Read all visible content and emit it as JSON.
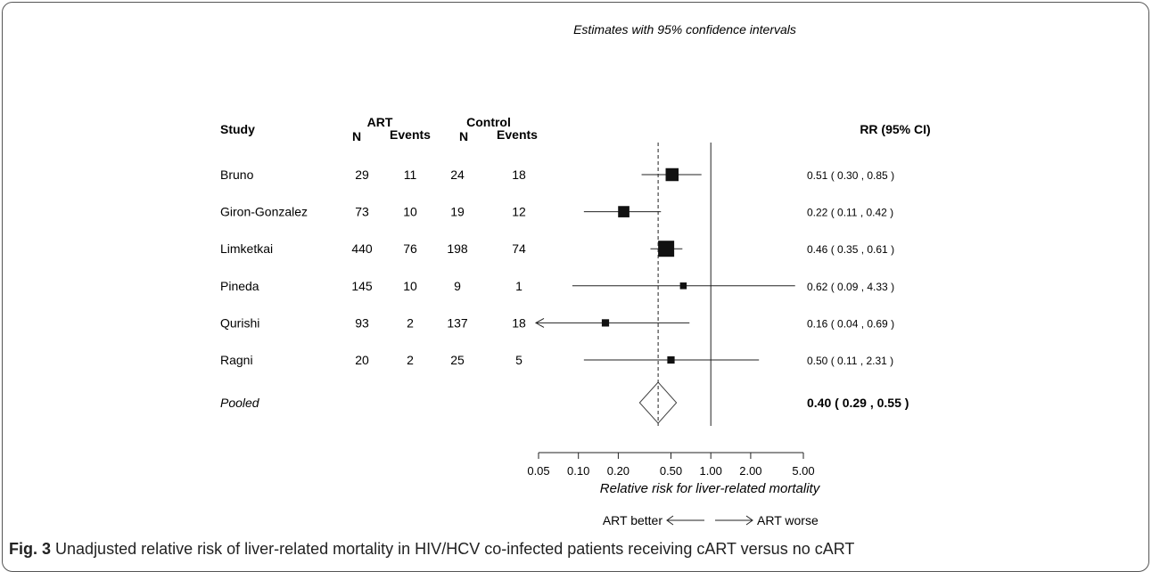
{
  "chart_data": {
    "type": "forest",
    "title": "Estimates with 95% confidence intervals",
    "headers": {
      "study": "Study",
      "art_group": "ART",
      "control_group": "Control",
      "n": "N",
      "events": "Events",
      "rr": "RR (95% CI)"
    },
    "studies": [
      {
        "name": "Bruno",
        "art_n": "29",
        "art_events": "11",
        "ctrl_n": "24",
        "ctrl_events": "18",
        "rr": 0.51,
        "lo": 0.3,
        "hi": 0.85,
        "rr_text": "0.51  ( 0.30 , 0.85 )",
        "weight": 0.75,
        "arrow_left": false
      },
      {
        "name": "Giron-Gonzalez",
        "art_n": "73",
        "art_events": "10",
        "ctrl_n": "19",
        "ctrl_events": "12",
        "rr": 0.22,
        "lo": 0.11,
        "hi": 0.42,
        "rr_text": "0.22  ( 0.11 , 0.42 )",
        "weight": 0.62,
        "arrow_left": false
      },
      {
        "name": "Limketkai",
        "art_n": "440",
        "art_events": "76",
        "ctrl_n": "198",
        "ctrl_events": "74",
        "rr": 0.46,
        "lo": 0.35,
        "hi": 0.61,
        "rr_text": "0.46  ( 0.35 , 0.61 )",
        "weight": 1.0,
        "arrow_left": false
      },
      {
        "name": "Pineda",
        "art_n": "145",
        "art_events": "10",
        "ctrl_n": "9",
        "ctrl_events": "1",
        "rr": 0.62,
        "lo": 0.09,
        "hi": 4.33,
        "rr_text": "0.62  ( 0.09 , 4.33 )",
        "weight": 0.25,
        "arrow_left": false
      },
      {
        "name": "Qurishi",
        "art_n": "93",
        "art_events": "2",
        "ctrl_n": "137",
        "ctrl_events": "18",
        "rr": 0.16,
        "lo": 0.04,
        "hi": 0.69,
        "rr_text": "0.16  ( 0.04 , 0.69 )",
        "weight": 0.3,
        "arrow_left": true
      },
      {
        "name": "Ragni",
        "art_n": "20",
        "art_events": "2",
        "ctrl_n": "25",
        "ctrl_events": "5",
        "rr": 0.5,
        "lo": 0.11,
        "hi": 2.31,
        "rr_text": "0.50  ( 0.11 , 2.31 )",
        "weight": 0.3,
        "arrow_left": false
      }
    ],
    "pooled": {
      "name": "Pooled",
      "rr": 0.4,
      "lo": 0.29,
      "hi": 0.55,
      "rr_text": "0.40   ( 0.29 , 0.55 )"
    },
    "x_scale": "log",
    "xlim": [
      0.05,
      5.0
    ],
    "x_ticks": [
      0.05,
      0.1,
      0.2,
      0.5,
      1.0,
      2.0,
      5.0
    ],
    "x_tick_labels": [
      "0.05",
      "0.10",
      "0.20",
      "0.50",
      "1.00",
      "2.00",
      "5.00"
    ],
    "null_value": 1.0,
    "xlabel": "Relative risk for liver-related mortality",
    "direction_left": "ART better",
    "direction_right": "ART worse"
  },
  "caption": {
    "label": "Fig. 3",
    "text": "Unadjusted relative risk of liver-related mortality in HIV/HCV co-infected patients receiving cART versus no cART"
  }
}
